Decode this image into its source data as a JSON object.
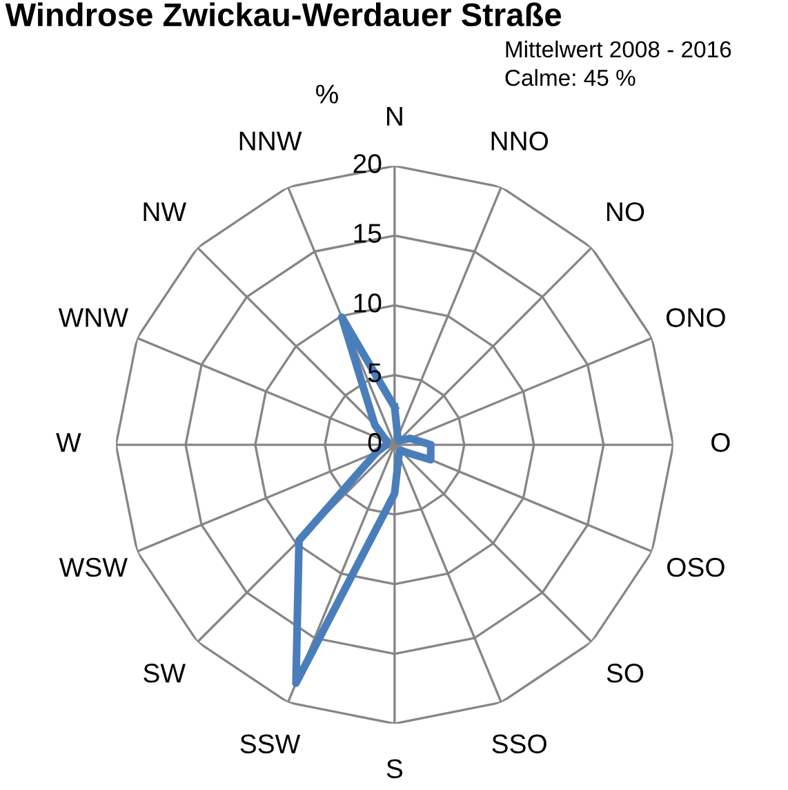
{
  "chart_data": {
    "type": "radar",
    "title": "Windrose Zwickau-Werdauer Straße",
    "ylabel": "%",
    "annotations": [
      "Mittelwert 2008 - 2016",
      "Calme: 45 %"
    ],
    "categories": [
      "N",
      "NNO",
      "NO",
      "ONO",
      "O",
      "OSO",
      "SO",
      "SSO",
      "S",
      "SSW",
      "SW",
      "WSW",
      "W",
      "WNW",
      "NW",
      "NNW"
    ],
    "series": [
      {
        "color": "#4a7ebb",
        "values": [
          2.7,
          0.6,
          0.4,
          1.2,
          2.6,
          2.8,
          0.6,
          0.8,
          3.5,
          18.5,
          9.7,
          1.4,
          0.6,
          0.6,
          2.0,
          9.9
        ]
      }
    ],
    "ylim": [
      0,
      20
    ],
    "yticks": [
      0,
      5,
      10,
      15,
      20
    ],
    "grid": true,
    "marker": "none",
    "line_style": "solid"
  }
}
